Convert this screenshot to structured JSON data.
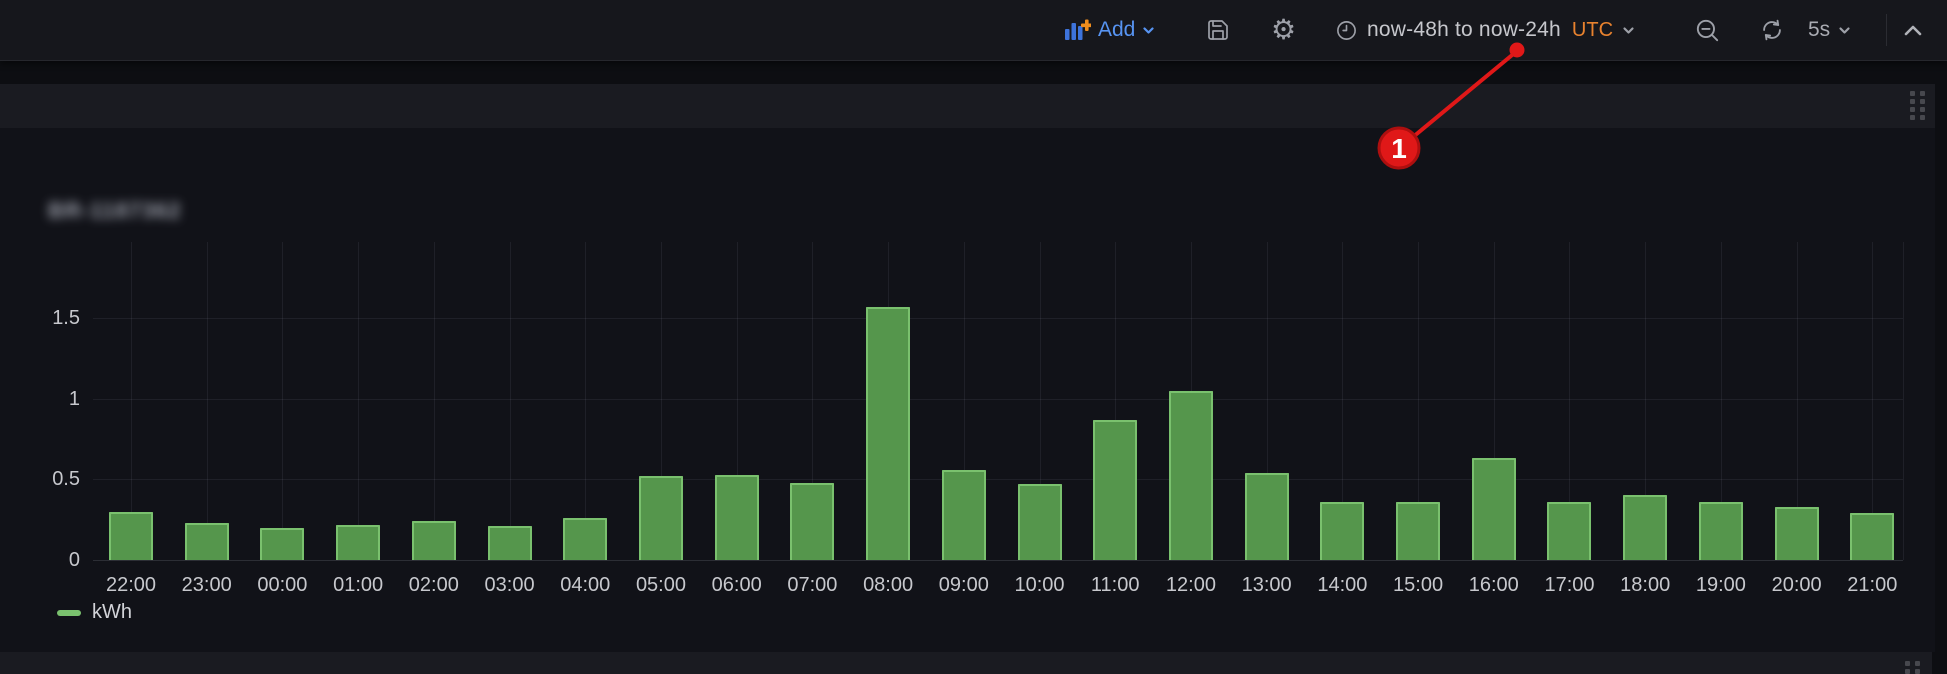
{
  "navbar": {
    "add_label": "Add",
    "time_range": "now-48h to now-24h",
    "timezone": "UTC",
    "refresh_interval": "5s",
    "icons": [
      "add-panel-icon",
      "chevron-down-icon",
      "save-dashboard-icon",
      "settings-gear-icon",
      "clock-icon",
      "zoom-out-icon",
      "refresh-icon",
      "chevron-up-icon",
      "drag-grip-icon"
    ],
    "accent_blue": "#5794f2",
    "accent_orange": "#e8822e"
  },
  "panel": {
    "title_masked": "BR-1187362",
    "title_is_blurred": true
  },
  "annotation": {
    "number": "1",
    "color": "#e01818",
    "target": "time-range-now-24h"
  },
  "chart_data": {
    "type": "bar",
    "title": "",
    "xlabel": "",
    "ylabel": "",
    "unit": "kWh",
    "legend_label": "kWh",
    "legend_position": "bottom-left",
    "grid": true,
    "ylim": [
      0,
      1.75
    ],
    "yticks": [
      0,
      0.5,
      1,
      1.5
    ],
    "ytick_labels": [
      "0",
      "0.5",
      "1",
      "1.5"
    ],
    "categories": [
      "22:00",
      "23:00",
      "00:00",
      "01:00",
      "02:00",
      "03:00",
      "04:00",
      "05:00",
      "06:00",
      "07:00",
      "08:00",
      "09:00",
      "10:00",
      "11:00",
      "12:00",
      "13:00",
      "14:00",
      "15:00",
      "16:00",
      "17:00",
      "18:00",
      "19:00",
      "20:00",
      "21:00"
    ],
    "values": [
      0.3,
      0.23,
      0.2,
      0.22,
      0.24,
      0.21,
      0.26,
      0.52,
      0.53,
      0.48,
      1.57,
      0.56,
      0.47,
      0.87,
      1.05,
      0.54,
      0.36,
      0.36,
      0.63,
      0.36,
      0.4,
      0.36,
      0.33,
      0.29
    ],
    "bar_fill": "#55964c",
    "bar_border": "#7ac16e"
  }
}
